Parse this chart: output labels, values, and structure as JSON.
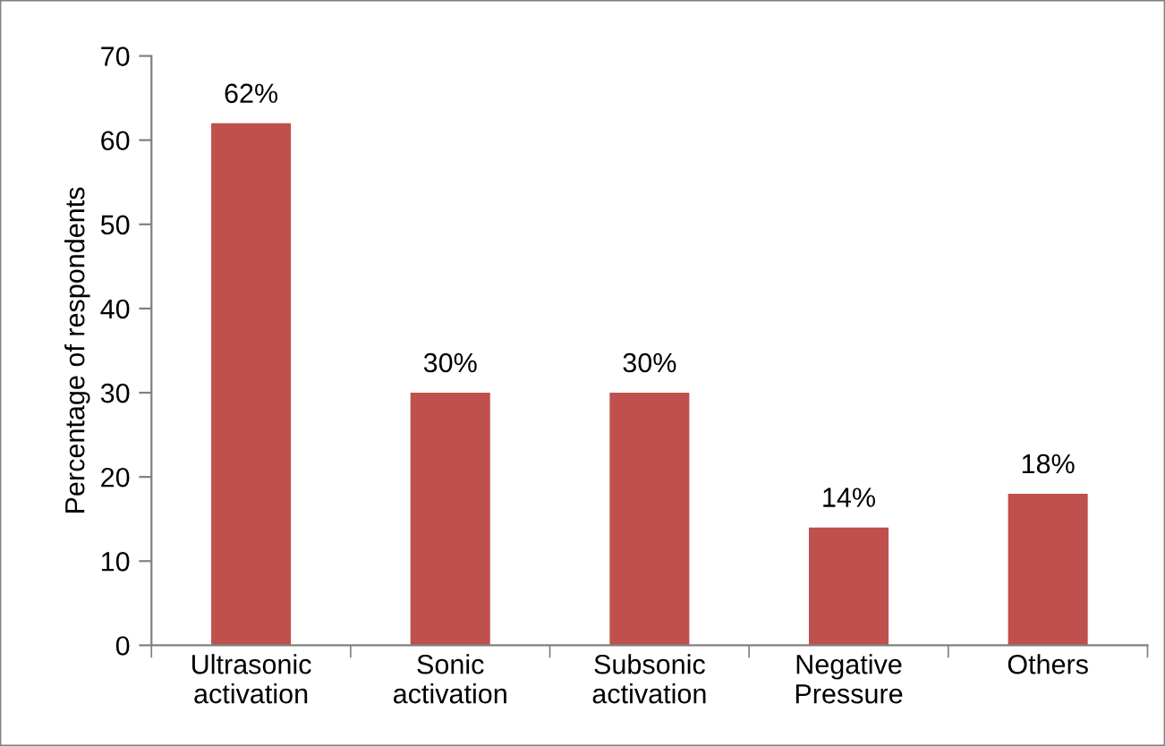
{
  "chart_data": {
    "type": "bar",
    "ylabel": "Percentage of respondents",
    "categories": [
      "Ultrasonic\nactivation",
      "Sonic\nactivation",
      "Subsonic\nactivation",
      "Negative\nPressure",
      "Others"
    ],
    "values": [
      62,
      30,
      30,
      14,
      18
    ],
    "value_labels": [
      "62%",
      "30%",
      "30%",
      "14%",
      "18%"
    ],
    "color": "#c0504d",
    "ylim": [
      0,
      70
    ],
    "yticks": [
      0,
      10,
      20,
      30,
      40,
      50,
      60,
      70
    ],
    "grid": false,
    "legend": false
  }
}
